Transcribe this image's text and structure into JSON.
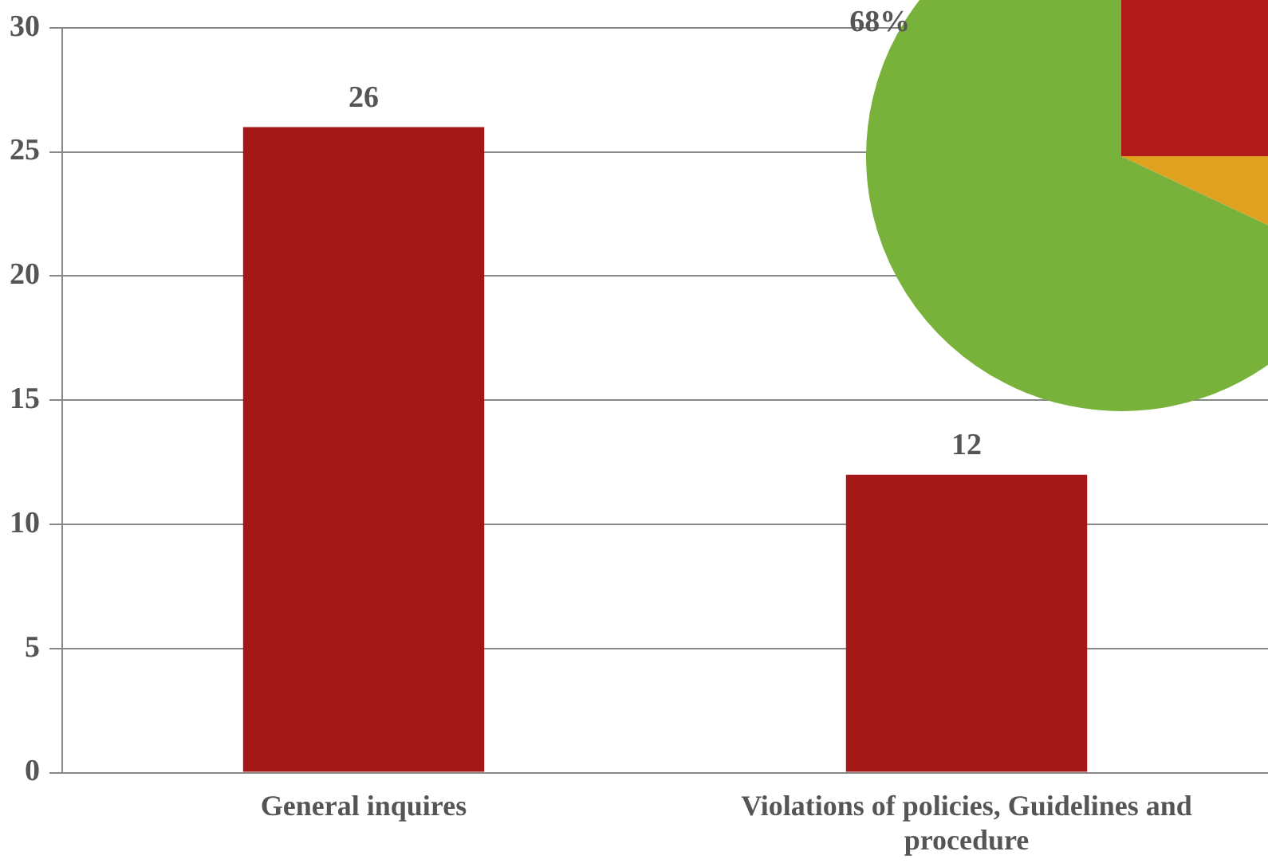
{
  "chart_data": [
    {
      "type": "bar",
      "categories": [
        "General inquires",
        "Violations of policies, Guidelines and procedure"
      ],
      "values": [
        26,
        12
      ],
      "color": "#a51818",
      "ylim": [
        0,
        30
      ],
      "yticks": [
        0,
        5,
        10,
        15,
        20,
        25,
        30
      ],
      "grid": "y",
      "data_labels": true,
      "legend": false
    },
    {
      "type": "pie",
      "categories": [
        null,
        null,
        null
      ],
      "values": [
        25,
        7,
        68
      ],
      "colors": [
        "#b01a1a",
        "#e0a020",
        "#78b23a"
      ],
      "value_labels": [
        null,
        null,
        "68%"
      ],
      "legend": false
    }
  ]
}
